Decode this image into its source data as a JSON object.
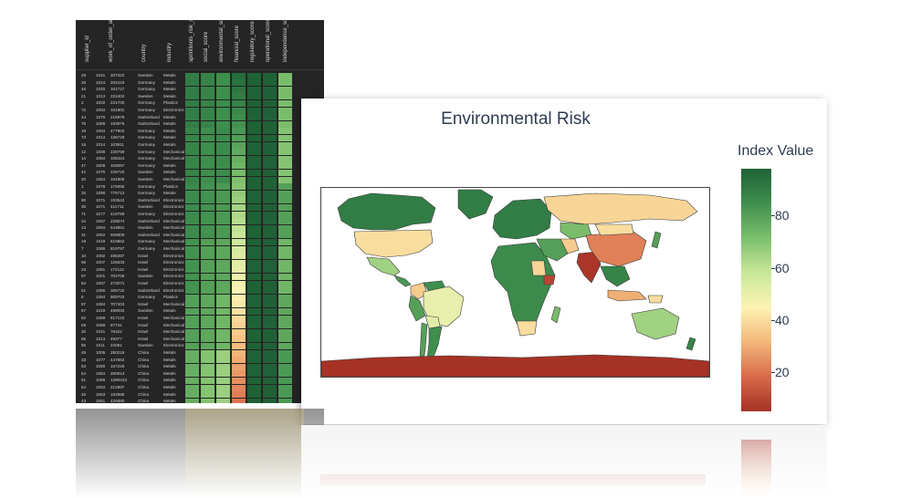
{
  "table": {
    "columns": [
      "supplier_id",
      "work_of_order_amount",
      "country",
      "industry",
      "sprintiinnis_risk_score",
      "social_score",
      "environmental_score",
      "financial_score",
      "regulatory_score",
      "operational_score",
      "independence_score"
    ],
    "rows": [
      {
        "idx": "29",
        "id": "1021",
        "amount": "207422",
        "country": "Sweden",
        "industry": "Metals"
      },
      {
        "idx": "28",
        "id": "1024",
        "amount": "202419",
        "country": "Germany",
        "industry": "Metals"
      },
      {
        "idx": "46",
        "id": "1020",
        "amount": "161727",
        "country": "Germany",
        "industry": "Metals"
      },
      {
        "idx": "21",
        "id": "1013",
        "amount": "222402",
        "country": "Sweden",
        "industry": "Metals"
      },
      {
        "idx": "2",
        "id": "1002",
        "amount": "221700",
        "country": "Germany",
        "industry": "Plastics"
      },
      {
        "idx": "72",
        "id": "1003",
        "amount": "161801",
        "country": "Germany",
        "industry": "Electronics"
      },
      {
        "idx": "44",
        "id": "1070",
        "amount": "216978",
        "country": "Switzerland",
        "industry": "Metals"
      },
      {
        "idx": "75",
        "id": "1089",
        "amount": "193976",
        "country": "Switzerland",
        "industry": "Metals"
      },
      {
        "idx": "18",
        "id": "1004",
        "amount": "477903",
        "country": "Germany",
        "industry": "Metals"
      },
      {
        "idx": "73",
        "id": "1013",
        "amount": "136728",
        "country": "Germany",
        "industry": "Metals"
      },
      {
        "idx": "16",
        "id": "1014",
        "amount": "103911",
        "country": "Germany",
        "industry": "Metals"
      },
      {
        "idx": "12",
        "id": "1008",
        "amount": "228789",
        "country": "Germany",
        "industry": "Mechanical"
      },
      {
        "idx": "14",
        "id": "1084",
        "amount": "105424",
        "country": "Germany",
        "industry": "Mechanical"
      },
      {
        "idx": "47",
        "id": "1008",
        "amount": "109067",
        "country": "Germany",
        "industry": "Metals"
      },
      {
        "idx": "42",
        "id": "1076",
        "amount": "225720",
        "country": "Sweden",
        "industry": "Metals"
      },
      {
        "idx": "20",
        "id": "1064",
        "amount": "161908",
        "country": "Sweden",
        "industry": "Mechanical"
      },
      {
        "idx": "1",
        "id": "1078",
        "amount": "175995",
        "country": "Germany",
        "industry": "Plastics"
      },
      {
        "idx": "25",
        "id": "1098",
        "amount": "776713",
        "country": "Germany",
        "industry": "Metals"
      },
      {
        "idx": "90",
        "id": "1071",
        "amount": "193542",
        "country": "Switzerland",
        "industry": "Electronics"
      },
      {
        "idx": "36",
        "id": "1071",
        "amount": "411711",
        "country": "Sweden",
        "industry": "Electronics"
      },
      {
        "idx": "71",
        "id": "1077",
        "amount": "418789",
        "country": "Germany",
        "industry": "Electronics"
      },
      {
        "idx": "34",
        "id": "1067",
        "amount": "228874",
        "country": "Switzerland",
        "industry": "Mechanical"
      },
      {
        "idx": "13",
        "id": "1094",
        "amount": "643861",
        "country": "Sweden",
        "industry": "Mechanical"
      },
      {
        "idx": "31",
        "id": "1062",
        "amount": "608809",
        "country": "Switzerland",
        "industry": "Mechanical"
      },
      {
        "idx": "19",
        "id": "1019",
        "amount": "619862",
        "country": "Germany",
        "industry": "Mechanical"
      },
      {
        "idx": "7",
        "id": "1086",
        "amount": "819787",
        "country": "Germany",
        "industry": "Mechanical"
      },
      {
        "idx": "10",
        "id": "1092",
        "amount": "496397",
        "country": "Israel",
        "industry": "Electronics"
      },
      {
        "idx": "66",
        "id": "1007",
        "amount": "125633",
        "country": "Israel",
        "industry": "Electronics"
      },
      {
        "idx": "23",
        "id": "1081",
        "amount": "172112",
        "country": "Israel",
        "industry": "Electronics"
      },
      {
        "idx": "57",
        "id": "1001",
        "amount": "704706",
        "country": "Sweden",
        "industry": "Electronics"
      },
      {
        "idx": "84",
        "id": "1007",
        "amount": "273071",
        "country": "Israel",
        "industry": "Electronics"
      },
      {
        "idx": "51",
        "id": "1065",
        "amount": "305732",
        "country": "Switzerland",
        "industry": "Electronics"
      },
      {
        "idx": "8",
        "id": "1084",
        "amount": "809703",
        "country": "Germany",
        "industry": "Plastics"
      },
      {
        "idx": "87",
        "id": "1084",
        "amount": "707403",
        "country": "Israel",
        "industry": "Mechanical"
      },
      {
        "idx": "67",
        "id": "1019",
        "amount": "499093",
        "country": "Sweden",
        "industry": "Metals"
      },
      {
        "idx": "62",
        "id": "1089",
        "amount": "617122",
        "country": "Israel",
        "industry": "Mechanical"
      },
      {
        "idx": "69",
        "id": "1068",
        "amount": "97741",
        "country": "Israel",
        "industry": "Mechanical"
      },
      {
        "idx": "30",
        "id": "1021",
        "amount": "76422",
        "country": "Israel",
        "industry": "Mechanical"
      },
      {
        "idx": "65",
        "id": "1013",
        "amount": "48377",
        "country": "Israel",
        "industry": "Mechanical"
      },
      {
        "idx": "55",
        "id": "1011",
        "amount": "22081",
        "country": "Sweden",
        "industry": "Electronics"
      },
      {
        "idx": "48",
        "id": "1005",
        "amount": "250216",
        "country": "China",
        "industry": "Metals"
      },
      {
        "idx": "33",
        "id": "1077",
        "amount": "447862",
        "country": "China",
        "industry": "Metals"
      },
      {
        "idx": "53",
        "id": "1080",
        "amount": "167226",
        "country": "China",
        "industry": "Metals"
      },
      {
        "idx": "54",
        "id": "1084",
        "amount": "260814",
        "country": "China",
        "industry": "Metals"
      },
      {
        "idx": "61",
        "id": "1088",
        "amount": "1280243",
        "country": "China",
        "industry": "Metals"
      },
      {
        "idx": "54",
        "id": "1053",
        "amount": "212887",
        "country": "China",
        "industry": "Metals"
      },
      {
        "idx": "48",
        "id": "1063",
        "amount": "182985",
        "country": "China",
        "industry": "Metals"
      },
      {
        "idx": "43",
        "id": "1051",
        "amount": "426880",
        "country": "China",
        "industry": "Metals"
      }
    ]
  },
  "chart_data": {
    "type": "choropleth",
    "title": "Environmental Risk",
    "colorbar_title": "Index Value",
    "colorscale": [
      "#a63125",
      "#d86a4b",
      "#f3b87a",
      "#fcf3b5",
      "#c9e79a",
      "#7cbf6c",
      "#3f8f4e",
      "#1f6237"
    ],
    "range": [
      5,
      98
    ],
    "ticks": [
      20,
      40,
      60,
      80
    ],
    "regions": [
      {
        "name": "Canada",
        "value": 90
      },
      {
        "name": "United States",
        "value": 40
      },
      {
        "name": "Mexico",
        "value": 65
      },
      {
        "name": "Central America",
        "value": 82
      },
      {
        "name": "Greenland",
        "value": 90
      },
      {
        "name": "Colombia",
        "value": 36
      },
      {
        "name": "Venezuela",
        "value": 85
      },
      {
        "name": "Peru",
        "value": 80
      },
      {
        "name": "Brazil",
        "value": 50
      },
      {
        "name": "Bolivia",
        "value": 52
      },
      {
        "name": "Argentina",
        "value": 85
      },
      {
        "name": "Chile",
        "value": 80
      },
      {
        "name": "Europe",
        "value": 90
      },
      {
        "name": "Russia",
        "value": 38
      },
      {
        "name": "Kazakhstan",
        "value": 72
      },
      {
        "name": "Africa",
        "value": 86
      },
      {
        "name": "Sudan",
        "value": 38
      },
      {
        "name": "Ethiopia",
        "value": 10
      },
      {
        "name": "South Africa",
        "value": 40
      },
      {
        "name": "Madagascar",
        "value": 72
      },
      {
        "name": "Middle East",
        "value": 80
      },
      {
        "name": "Iran",
        "value": 36
      },
      {
        "name": "India",
        "value": 6
      },
      {
        "name": "China",
        "value": 22
      },
      {
        "name": "Mongolia",
        "value": 40
      },
      {
        "name": "Southeast Asia",
        "value": 88
      },
      {
        "name": "Indonesia",
        "value": 30
      },
      {
        "name": "Papua New Guinea",
        "value": 40
      },
      {
        "name": "Japan",
        "value": 80
      },
      {
        "name": "Australia",
        "value": 65
      },
      {
        "name": "New Zealand",
        "value": 88
      },
      {
        "name": "Antarctica",
        "value": 5
      }
    ]
  }
}
